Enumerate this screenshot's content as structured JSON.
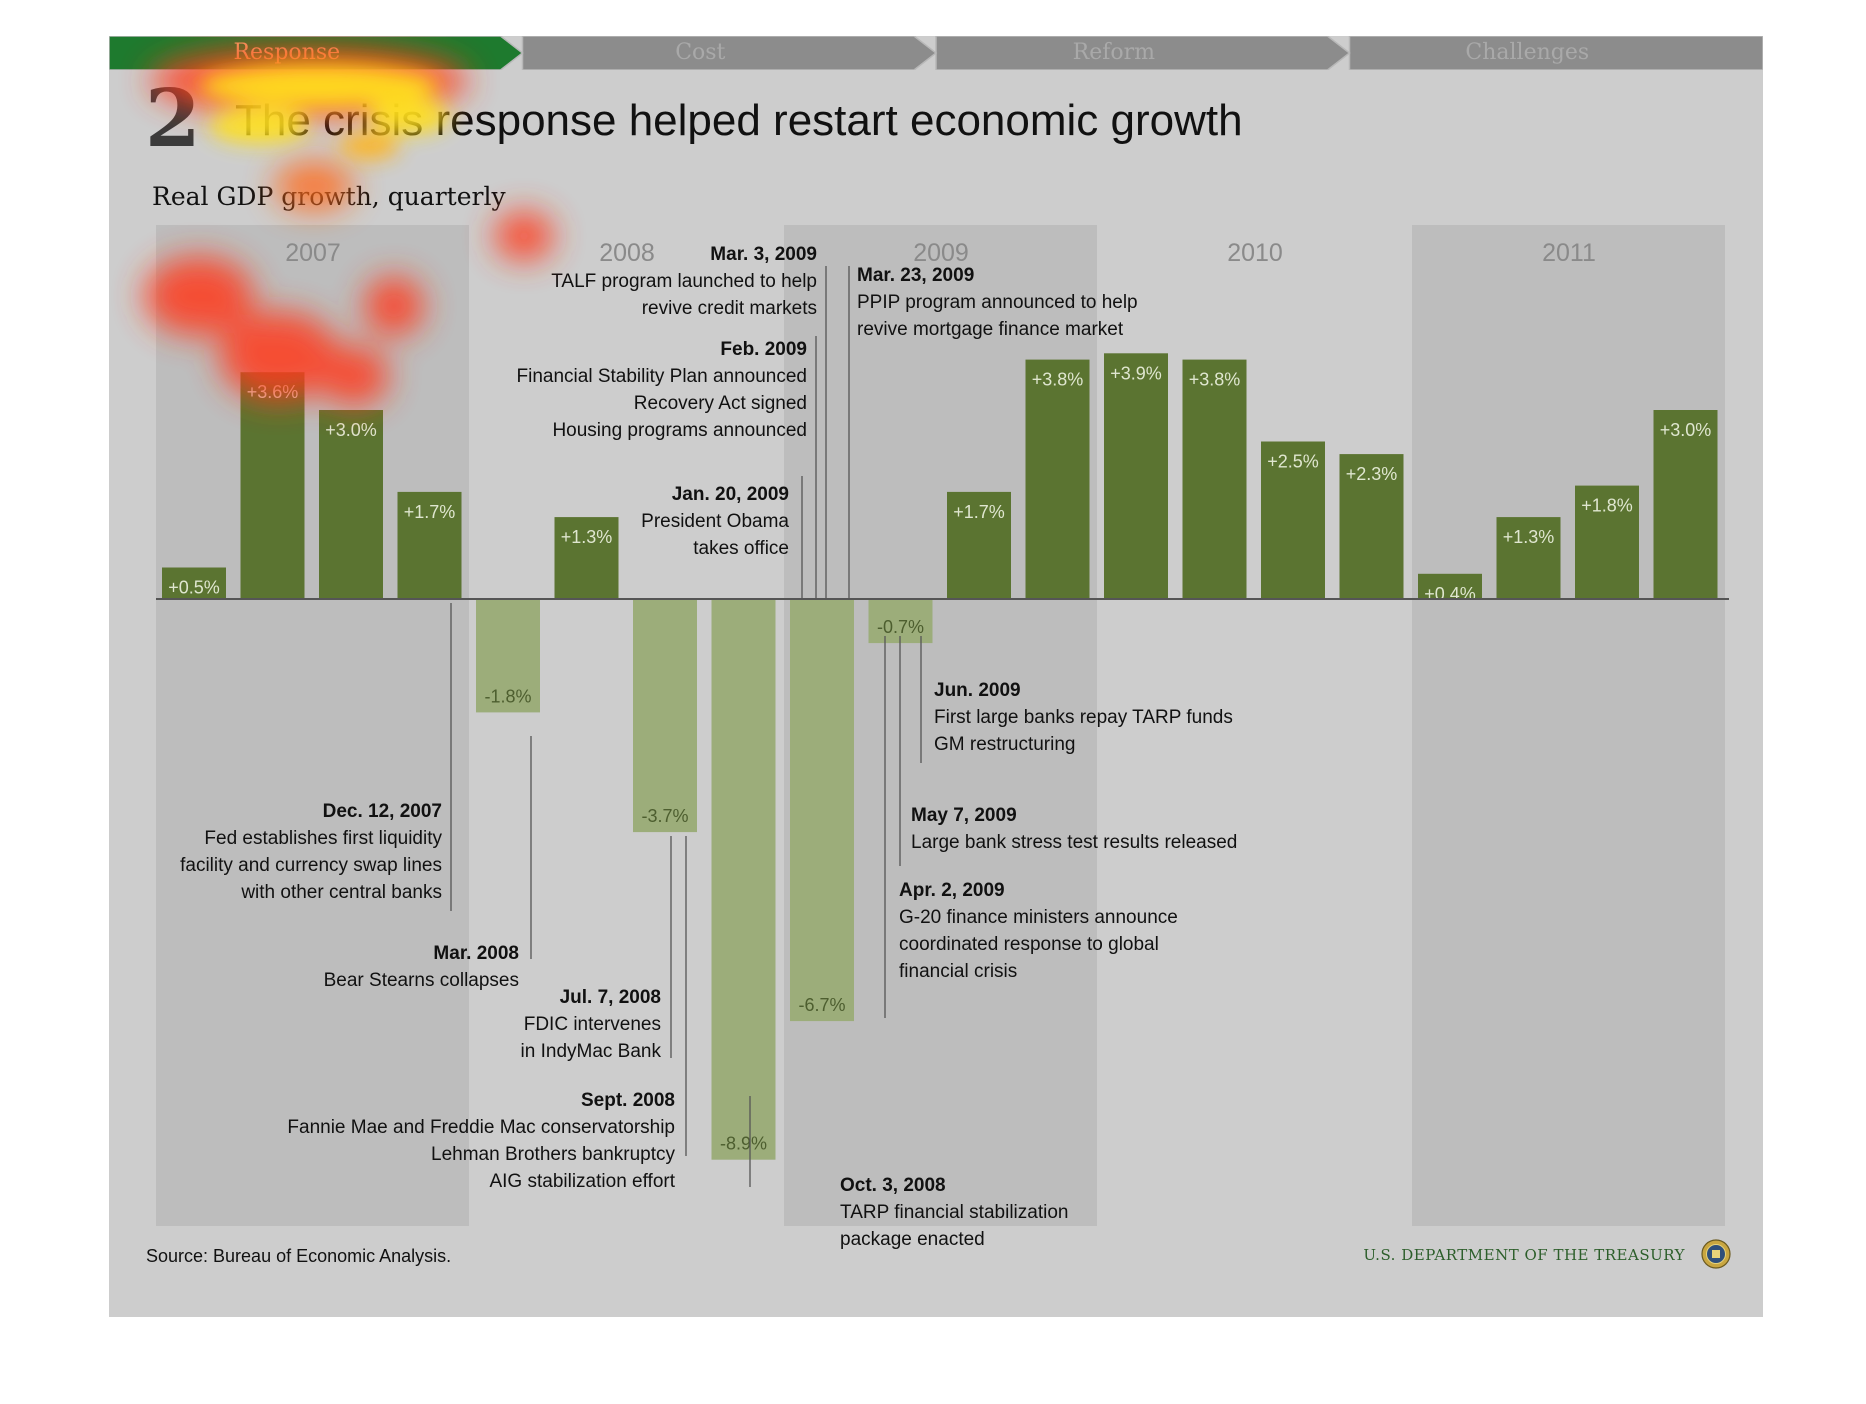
{
  "nav": {
    "items": [
      {
        "label": "Response",
        "active": true
      },
      {
        "label": "Cost",
        "active": false
      },
      {
        "label": "Reform",
        "active": false
      },
      {
        "label": "Challenges",
        "active": false
      }
    ],
    "active_color": "#1e7a2e",
    "inactive_color": "#8c8c8c"
  },
  "header": {
    "slide_number": "2",
    "title": "The crisis response helped restart economic growth"
  },
  "footer": {
    "source": "Source: Bureau of Economic Analysis.",
    "agency": "U.S. DEPARTMENT OF THE TREASURY",
    "seal_icon": "treasury-seal-icon"
  },
  "chart_data": {
    "type": "bar",
    "title": "Real GDP growth, quarterly",
    "year_groups": [
      "2007",
      "2008",
      "2009",
      "2010",
      "2011"
    ],
    "categories": [
      "2007 Q1",
      "2007 Q2",
      "2007 Q3",
      "2007 Q4",
      "2008 Q1",
      "2008 Q2",
      "2008 Q3",
      "2008 Q4",
      "2009 Q1",
      "2009 Q2",
      "2009 Q3",
      "2009 Q4",
      "2010 Q1",
      "2010 Q2",
      "2010 Q3",
      "2010 Q4",
      "2011 Q1",
      "2011 Q2",
      "2011 Q3",
      "2011 Q4"
    ],
    "values": [
      0.5,
      3.6,
      3.0,
      1.7,
      -1.8,
      1.3,
      -3.7,
      -8.9,
      -6.7,
      -0.7,
      1.7,
      3.8,
      3.9,
      3.8,
      2.5,
      2.3,
      0.4,
      1.3,
      1.8,
      3.0
    ],
    "labels": [
      "+0.5%",
      "+3.6%",
      "+3.0%",
      "+1.7%",
      "-1.8%",
      "+1.3%",
      "-3.7%",
      "-8.9%",
      "-6.7%",
      "-0.7%",
      "+1.7%",
      "+3.8%",
      "+3.9%",
      "+3.8%",
      "+2.5%",
      "+2.3%",
      "+0.4%",
      "+1.3%",
      "+1.8%",
      "+3.0%"
    ],
    "colors": {
      "positive": "#5b7431",
      "negative": "#9cad7a",
      "year_band": "#bdbdbd",
      "background": "#cdcdcd",
      "axis": "#555555"
    },
    "ylim": [
      -10,
      4.5
    ],
    "annotations": [
      {
        "date": "Dec. 12, 2007",
        "text": [
          "Fed establishes first liquidity",
          "facility and currency swap lines",
          "with other central banks"
        ]
      },
      {
        "date": "Mar. 2008",
        "text": [
          "Bear Stearns collapses"
        ]
      },
      {
        "date": "Jul. 7, 2008",
        "text": [
          "FDIC intervenes",
          "in IndyMac Bank"
        ]
      },
      {
        "date": "Sept. 2008",
        "text": [
          "Fannie Mae and Freddie Mac conservatorship",
          "Lehman Brothers bankruptcy",
          "AIG stabilization effort"
        ]
      },
      {
        "date": "Oct. 3, 2008",
        "text": [
          "TARP financial stabilization",
          "package enacted"
        ]
      },
      {
        "date": "Jan. 20, 2009",
        "text": [
          "President Obama",
          "takes office"
        ]
      },
      {
        "date": "Feb. 2009",
        "text": [
          "Financial Stability Plan announced",
          "Recovery Act signed",
          "Housing programs announced"
        ]
      },
      {
        "date": "Mar. 3, 2009",
        "text": [
          "TALF program launched to help",
          "revive credit markets"
        ]
      },
      {
        "date": "Mar. 23, 2009",
        "text": [
          "PPIP program announced to help",
          "revive mortgage finance market"
        ]
      },
      {
        "date": "Apr. 2, 2009",
        "text": [
          "G-20 finance ministers announce",
          "coordinated response to global",
          "financial crisis"
        ]
      },
      {
        "date": "May 7, 2009",
        "text": [
          "Large bank stress test results released"
        ]
      },
      {
        "date": "Jun. 2009",
        "text": [
          "First large banks repay TARP funds",
          "GM restructuring"
        ]
      }
    ]
  }
}
